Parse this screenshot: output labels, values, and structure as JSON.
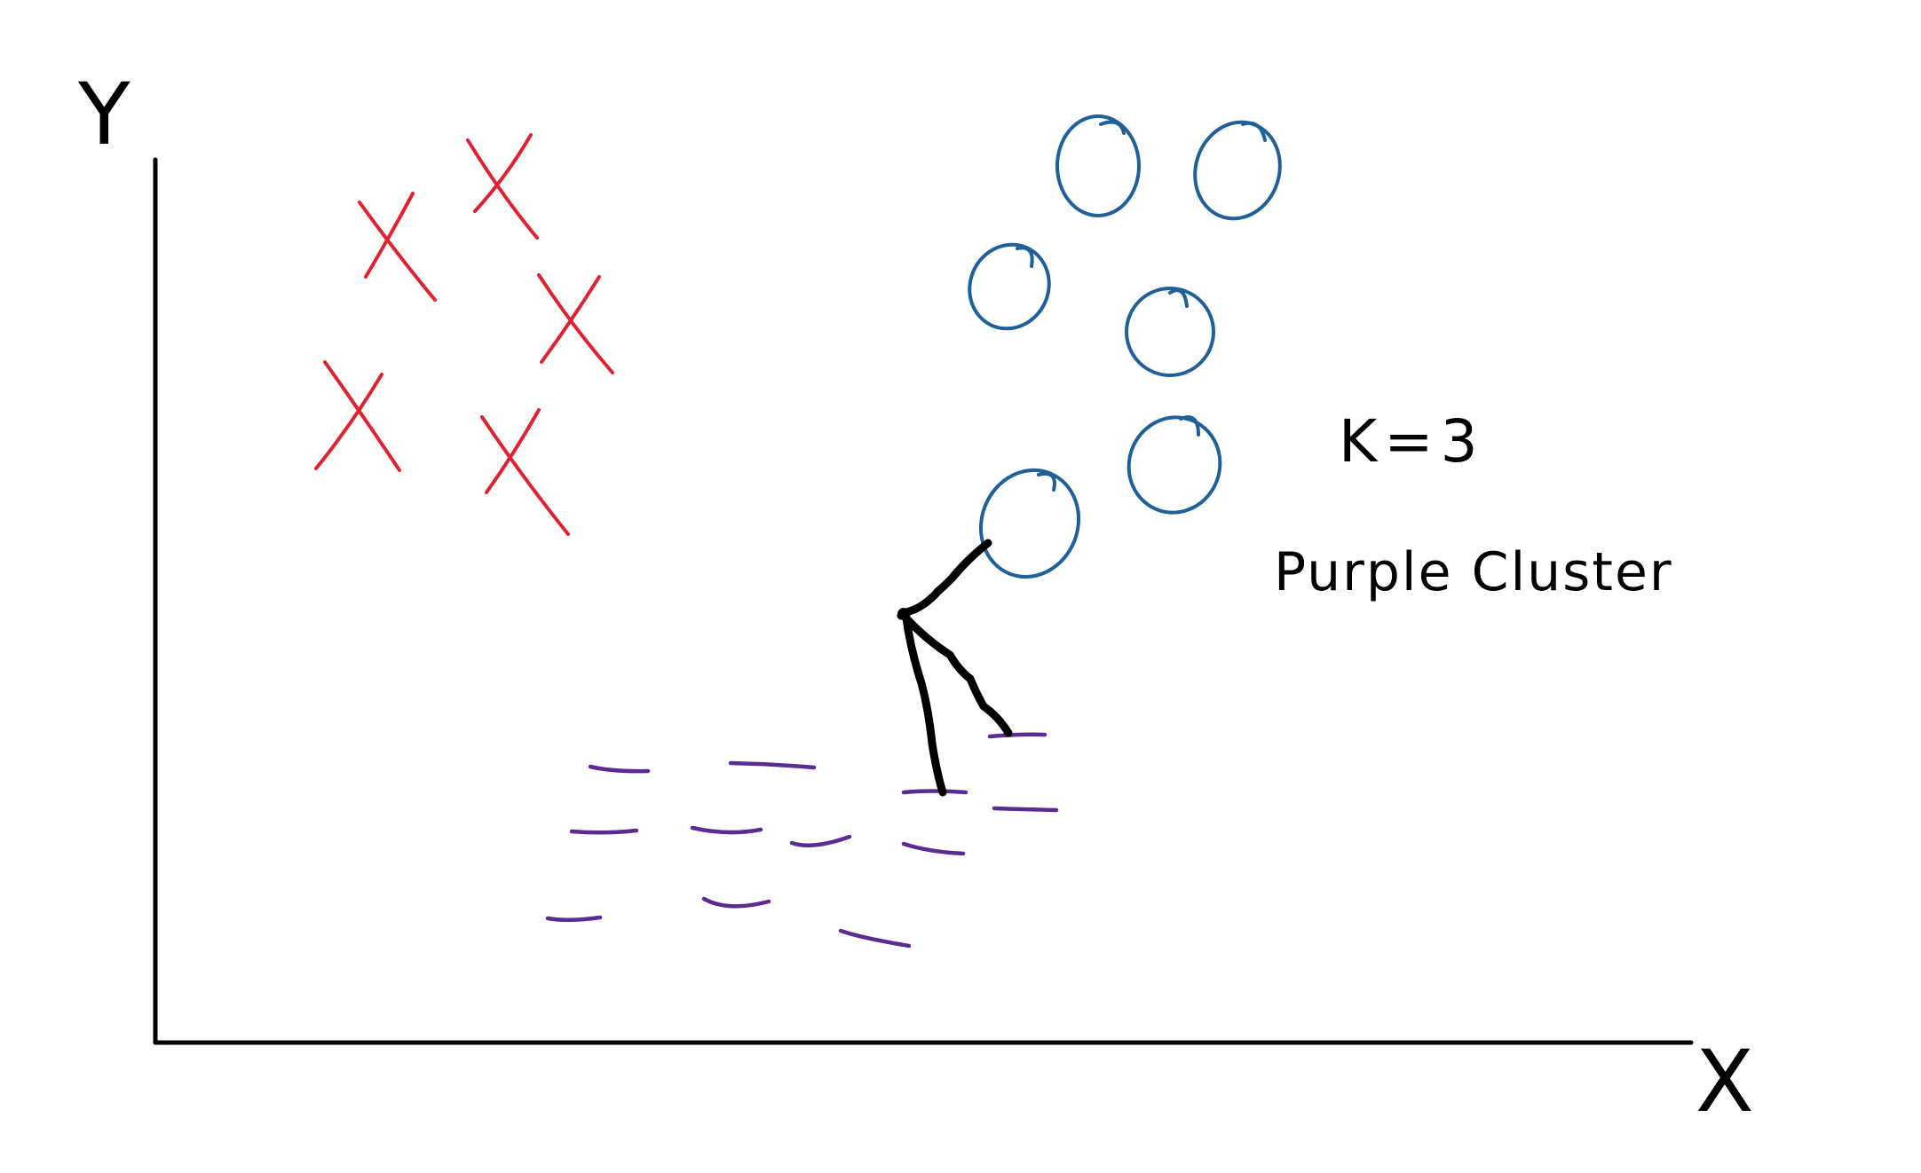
{
  "axes": {
    "x_label": "X",
    "y_label": "Y"
  },
  "annotation": {
    "k_text": "K=3",
    "cluster_text": "Purple Cluster"
  },
  "clusters": [
    {
      "marker": "x",
      "color": "#e0212f",
      "count": 5
    },
    {
      "marker": "circle",
      "color": "#1f5f9a",
      "count": 6
    },
    {
      "marker": "dash",
      "color": "#5b2a92",
      "count": 12
    }
  ],
  "colors": {
    "ink": "#000000",
    "red": "#e0212f",
    "blue": "#1f5f9a",
    "purple": "#5b2a92"
  },
  "icons": {
    "figure": "stick-figure-icon"
  }
}
